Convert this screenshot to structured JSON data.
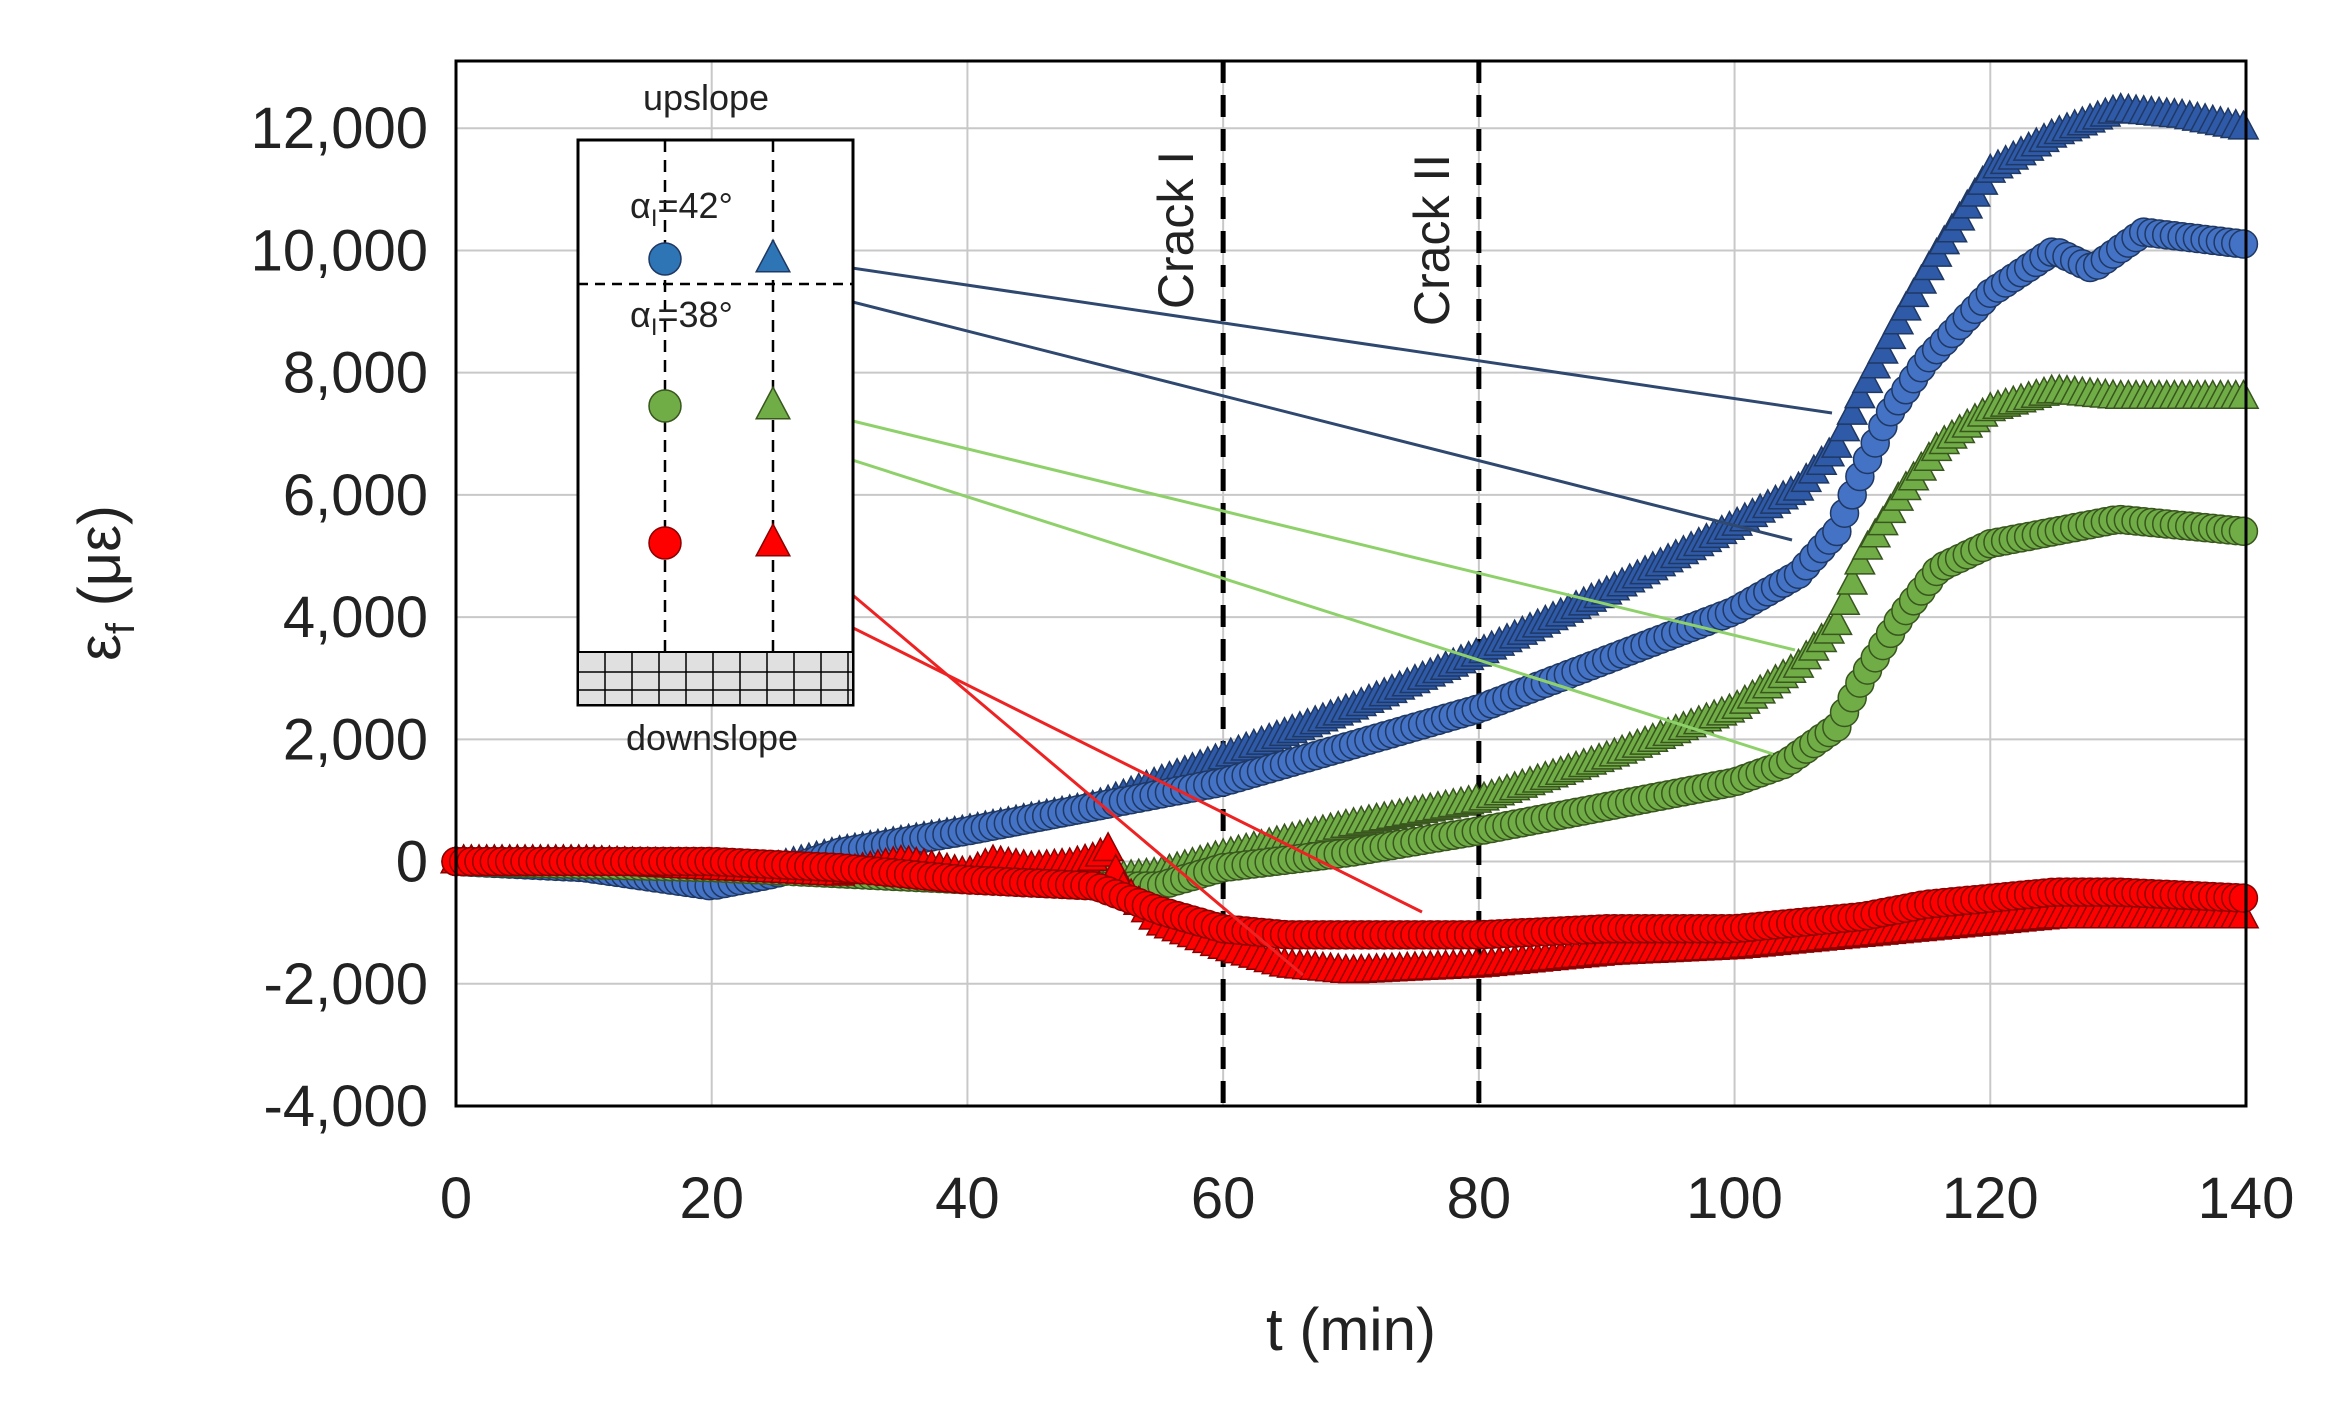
{
  "chart_data": {
    "type": "scatter",
    "title": "",
    "xlabel": "t (min)",
    "ylabel": "ε_f (με)",
    "ylabel_main": "ε",
    "ylabel_sub": "f",
    "ylabel_unit": "(με)",
    "xlim": [
      0,
      140
    ],
    "ylim": [
      -4000,
      13000
    ],
    "xticks": [
      0,
      20,
      40,
      60,
      80,
      100,
      120,
      140
    ],
    "yticks": [
      -4000,
      -2000,
      0,
      2000,
      4000,
      6000,
      8000,
      10000,
      12000
    ],
    "xtick_labels": [
      "0",
      "20",
      "40",
      "60",
      "80",
      "100",
      "120",
      "140"
    ],
    "ytick_labels": [
      "-4,000",
      "-2,000",
      "0",
      "2,000",
      "4,000",
      "6,000",
      "8,000",
      "10,000",
      "12,000"
    ],
    "grid": true,
    "crack_lines": [
      {
        "t": 60,
        "label": "Crack I"
      },
      {
        "t": 80,
        "label": "Crack II"
      }
    ],
    "inset": {
      "top_label": "upslope",
      "bottom_label": "downslope",
      "upper_angle": "α = 42°",
      "lower_angle": "α = 38°",
      "upper_angle_greek": "α",
      "upper_angle_sub": "I",
      "upper_angle_value": "=42°",
      "lower_angle_greek": "α",
      "lower_angle_sub": "I",
      "lower_angle_value": "=38°"
    },
    "series": [
      {
        "name": "upper-triangle",
        "marker": "triangle",
        "color": "#2f5aa8",
        "edge": "#1f3864",
        "points": [
          [
            0,
            0
          ],
          [
            10,
            0
          ],
          [
            20,
            -100
          ],
          [
            25,
            -100
          ],
          [
            30,
            150
          ],
          [
            40,
            500
          ],
          [
            50,
            900
          ],
          [
            60,
            1700
          ],
          [
            70,
            2500
          ],
          [
            80,
            3400
          ],
          [
            90,
            4400
          ],
          [
            100,
            5500
          ],
          [
            105,
            6100
          ],
          [
            108,
            6800
          ],
          [
            110,
            7700
          ],
          [
            113,
            8900
          ],
          [
            116,
            10000
          ],
          [
            120,
            11300
          ],
          [
            125,
            11900
          ],
          [
            130,
            12300
          ],
          [
            135,
            12200
          ],
          [
            140,
            12000
          ]
        ],
        "inset_position": "upper-right"
      },
      {
        "name": "upper-circle",
        "marker": "circle",
        "color": "#4472c4",
        "edge": "#1f3864",
        "points": [
          [
            0,
            0
          ],
          [
            10,
            -100
          ],
          [
            20,
            -400
          ],
          [
            25,
            -200
          ],
          [
            30,
            150
          ],
          [
            40,
            500
          ],
          [
            50,
            900
          ],
          [
            60,
            1300
          ],
          [
            70,
            1900
          ],
          [
            80,
            2500
          ],
          [
            90,
            3300
          ],
          [
            100,
            4100
          ],
          [
            105,
            4700
          ],
          [
            108,
            5400
          ],
          [
            110,
            6400
          ],
          [
            112,
            7300
          ],
          [
            115,
            8200
          ],
          [
            120,
            9300
          ],
          [
            125,
            10000
          ],
          [
            128,
            9700
          ],
          [
            132,
            10300
          ],
          [
            136,
            10200
          ],
          [
            140,
            10100
          ]
        ],
        "inset_position": "upper-left"
      },
      {
        "name": "middle-triangle",
        "marker": "triangle",
        "color": "#70ad47",
        "edge": "#38561d",
        "points": [
          [
            0,
            0
          ],
          [
            20,
            -50
          ],
          [
            40,
            -300
          ],
          [
            50,
            -300
          ],
          [
            55,
            -200
          ],
          [
            60,
            100
          ],
          [
            70,
            600
          ],
          [
            80,
            1000
          ],
          [
            90,
            1700
          ],
          [
            100,
            2500
          ],
          [
            105,
            3200
          ],
          [
            108,
            3900
          ],
          [
            110,
            5000
          ],
          [
            113,
            6000
          ],
          [
            116,
            6800
          ],
          [
            120,
            7400
          ],
          [
            125,
            7700
          ],
          [
            130,
            7600
          ],
          [
            135,
            7600
          ],
          [
            140,
            7600
          ]
        ],
        "inset_position": "middle-right"
      },
      {
        "name": "middle-circle",
        "marker": "circle",
        "color": "#70ad47",
        "edge": "#38561d",
        "points": [
          [
            0,
            0
          ],
          [
            20,
            -100
          ],
          [
            40,
            -300
          ],
          [
            50,
            -400
          ],
          [
            55,
            -400
          ],
          [
            60,
            -100
          ],
          [
            70,
            150
          ],
          [
            80,
            500
          ],
          [
            90,
            900
          ],
          [
            100,
            1300
          ],
          [
            104,
            1600
          ],
          [
            108,
            2200
          ],
          [
            110,
            3000
          ],
          [
            113,
            4000
          ],
          [
            116,
            4800
          ],
          [
            120,
            5200
          ],
          [
            125,
            5400
          ],
          [
            130,
            5600
          ],
          [
            135,
            5500
          ],
          [
            140,
            5400
          ]
        ],
        "inset_position": "middle-left"
      },
      {
        "name": "lower-triangle",
        "marker": "triangle",
        "color": "#ff0000",
        "edge": "#8b0000",
        "points": [
          [
            0,
            0
          ],
          [
            10,
            0
          ],
          [
            20,
            -100
          ],
          [
            30,
            -200
          ],
          [
            35,
            0
          ],
          [
            40,
            -200
          ],
          [
            42,
            0
          ],
          [
            45,
            -100
          ],
          [
            48,
            -50
          ],
          [
            50,
            50
          ],
          [
            51,
            200
          ],
          [
            52,
            -400
          ],
          [
            55,
            -1000
          ],
          [
            60,
            -1400
          ],
          [
            65,
            -1700
          ],
          [
            70,
            -1800
          ],
          [
            80,
            -1700
          ],
          [
            90,
            -1500
          ],
          [
            100,
            -1400
          ],
          [
            110,
            -1200
          ],
          [
            120,
            -1000
          ],
          [
            125,
            -900
          ],
          [
            130,
            -900
          ],
          [
            140,
            -900
          ]
        ],
        "inset_position": "lower-right"
      },
      {
        "name": "lower-circle",
        "marker": "circle",
        "color": "#ff0000",
        "edge": "#8b0000",
        "points": [
          [
            0,
            0
          ],
          [
            10,
            0
          ],
          [
            20,
            0
          ],
          [
            30,
            -100
          ],
          [
            40,
            -300
          ],
          [
            50,
            -400
          ],
          [
            55,
            -800
          ],
          [
            60,
            -1100
          ],
          [
            65,
            -1200
          ],
          [
            70,
            -1200
          ],
          [
            80,
            -1200
          ],
          [
            90,
            -1100
          ],
          [
            100,
            -1100
          ],
          [
            105,
            -1000
          ],
          [
            110,
            -900
          ],
          [
            115,
            -700
          ],
          [
            120,
            -600
          ],
          [
            125,
            -500
          ],
          [
            130,
            -500
          ],
          [
            140,
            -600
          ]
        ],
        "inset_position": "lower-left"
      }
    ]
  }
}
